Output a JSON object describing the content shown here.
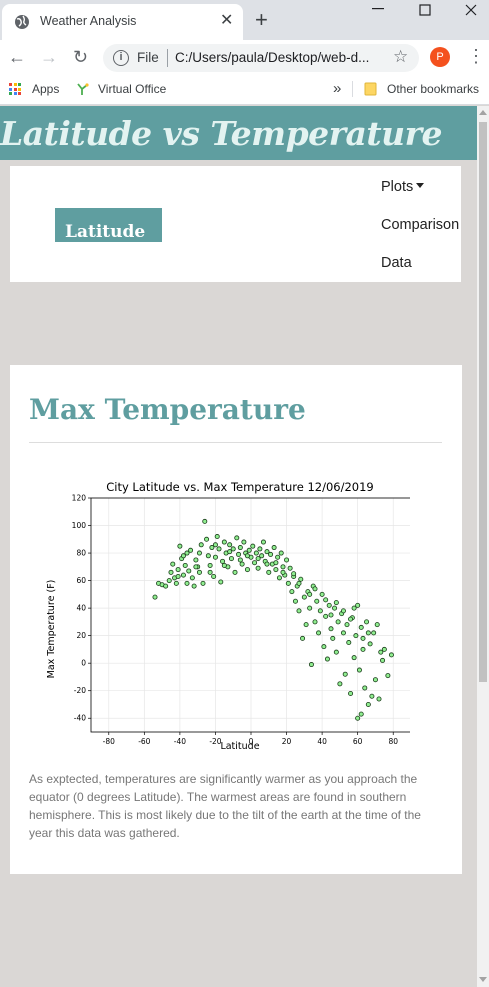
{
  "browser": {
    "tab_title": "Weather Analysis",
    "tab_close": "✕",
    "new_tab": "+",
    "url_scheme": "File",
    "url": "C:/Users/paula/Desktop/web-d...",
    "profile_initial": "P",
    "bookmarks": {
      "apps": "Apps",
      "virtual_office": "Virtual Office",
      "overflow": "»",
      "other": "Other bookmarks"
    }
  },
  "page": {
    "banner_title": "Latitude vs Temperature",
    "brand": "Latitude",
    "nav": {
      "plots": "Plots",
      "comparison": "Comparison",
      "data": "Data"
    },
    "card": {
      "title": "Max Temperature",
      "description": "As exptected, temperatures are significantly warmer as you approach the equator (0 degrees Latitude). The warmest areas are found in southern hemisphere. This is most likely due to the tilt of the earth at the time of the year this data was gathered."
    }
  },
  "colors": {
    "accent": "#5f9ea0",
    "marker_fill": "#90ee90",
    "marker_edge": "#1a3d1a"
  },
  "chart_data": {
    "type": "scatter",
    "title": "City Latitude vs. Max Temperature 12/06/2019",
    "xlabel": "Latitude",
    "ylabel": "Max Temperature (F)",
    "xlim": [
      -90,
      90
    ],
    "ylim": [
      -50,
      120
    ],
    "xticks": [
      -80,
      -60,
      -40,
      -20,
      0,
      20,
      40,
      60,
      80
    ],
    "yticks": [
      -40,
      -20,
      0,
      20,
      40,
      60,
      80,
      100,
      120
    ],
    "grid": true,
    "points": [
      [
        -54,
        48
      ],
      [
        -52,
        58
      ],
      [
        -50,
        57
      ],
      [
        -46,
        60
      ],
      [
        -45,
        66
      ],
      [
        -44,
        72
      ],
      [
        -43,
        62
      ],
      [
        -42,
        58
      ],
      [
        -41,
        68
      ],
      [
        -40,
        85
      ],
      [
        -39,
        76
      ],
      [
        -38,
        64
      ],
      [
        -37,
        71
      ],
      [
        -36,
        80
      ],
      [
        -35,
        67
      ],
      [
        -34,
        82
      ],
      [
        -33,
        62
      ],
      [
        -32,
        56
      ],
      [
        -31,
        75
      ],
      [
        -30,
        70
      ],
      [
        -29,
        66
      ],
      [
        -28,
        86
      ],
      [
        -27,
        58
      ],
      [
        -26,
        103
      ],
      [
        -25,
        90
      ],
      [
        -24,
        78
      ],
      [
        -23,
        71
      ],
      [
        -22,
        84
      ],
      [
        -21,
        63
      ],
      [
        -20,
        77
      ],
      [
        -19,
        92
      ],
      [
        -18,
        83
      ],
      [
        -17,
        59
      ],
      [
        -16,
        74
      ],
      [
        -15,
        88
      ],
      [
        -14,
        80
      ],
      [
        -13,
        70
      ],
      [
        -12,
        86
      ],
      [
        -11,
        76
      ],
      [
        -10,
        83
      ],
      [
        -9,
        66
      ],
      [
        -8,
        91
      ],
      [
        -7,
        79
      ],
      [
        -6,
        84
      ],
      [
        -5,
        72
      ],
      [
        -4,
        88
      ],
      [
        -3,
        80
      ],
      [
        -2,
        68
      ],
      [
        -1,
        82
      ],
      [
        0,
        77
      ],
      [
        1,
        85
      ],
      [
        2,
        73
      ],
      [
        3,
        80
      ],
      [
        4,
        69
      ],
      [
        5,
        83
      ],
      [
        6,
        78
      ],
      [
        7,
        88
      ],
      [
        8,
        74
      ],
      [
        9,
        81
      ],
      [
        10,
        66
      ],
      [
        11,
        79
      ],
      [
        12,
        72
      ],
      [
        13,
        84
      ],
      [
        14,
        68
      ],
      [
        15,
        77
      ],
      [
        16,
        62
      ],
      [
        17,
        80
      ],
      [
        18,
        70
      ],
      [
        19,
        64
      ],
      [
        20,
        75
      ],
      [
        21,
        58
      ],
      [
        22,
        69
      ],
      [
        23,
        52
      ],
      [
        24,
        63
      ],
      [
        25,
        45
      ],
      [
        26,
        56
      ],
      [
        27,
        38
      ],
      [
        28,
        61
      ],
      [
        29,
        18
      ],
      [
        30,
        48
      ],
      [
        31,
        28
      ],
      [
        32,
        52
      ],
      [
        33,
        40
      ],
      [
        34,
        -1
      ],
      [
        35,
        56
      ],
      [
        36,
        30
      ],
      [
        37,
        45
      ],
      [
        38,
        22
      ],
      [
        39,
        38
      ],
      [
        40,
        50
      ],
      [
        41,
        12
      ],
      [
        42,
        34
      ],
      [
        43,
        3
      ],
      [
        44,
        42
      ],
      [
        45,
        25
      ],
      [
        46,
        18
      ],
      [
        47,
        40
      ],
      [
        48,
        8
      ],
      [
        49,
        30
      ],
      [
        50,
        -15
      ],
      [
        51,
        36
      ],
      [
        52,
        22
      ],
      [
        53,
        -8
      ],
      [
        54,
        28
      ],
      [
        55,
        15
      ],
      [
        56,
        -22
      ],
      [
        57,
        33
      ],
      [
        58,
        4
      ],
      [
        59,
        20
      ],
      [
        60,
        42
      ],
      [
        61,
        -5
      ],
      [
        62,
        26
      ],
      [
        63,
        10
      ],
      [
        64,
        -18
      ],
      [
        65,
        30
      ],
      [
        66,
        -30
      ],
      [
        67,
        14
      ],
      [
        68,
        -24
      ],
      [
        69,
        22
      ],
      [
        70,
        -12
      ],
      [
        71,
        28
      ],
      [
        72,
        -26
      ],
      [
        73,
        8
      ],
      [
        74,
        2
      ],
      [
        75,
        10
      ],
      [
        77,
        -9
      ],
      [
        79,
        6
      ],
      [
        60,
        -40
      ],
      [
        62,
        -37
      ],
      [
        -48,
        56
      ],
      [
        -38,
        78
      ],
      [
        -36,
        58
      ],
      [
        -29,
        80
      ],
      [
        -23,
        66
      ],
      [
        -15,
        71
      ],
      [
        -6,
        75
      ],
      [
        4,
        76
      ],
      [
        14,
        73
      ],
      [
        24,
        65
      ],
      [
        33,
        50
      ],
      [
        42,
        46
      ],
      [
        48,
        44
      ],
      [
        52,
        38
      ],
      [
        56,
        32
      ],
      [
        58,
        40
      ],
      [
        63,
        18
      ],
      [
        66,
        22
      ],
      [
        45,
        35
      ],
      [
        36,
        54
      ],
      [
        27,
        58
      ],
      [
        18,
        66
      ],
      [
        9,
        72
      ],
      [
        -2,
        78
      ],
      [
        -12,
        81
      ],
      [
        -20,
        86
      ],
      [
        -31,
        70
      ],
      [
        -41,
        63
      ]
    ]
  }
}
